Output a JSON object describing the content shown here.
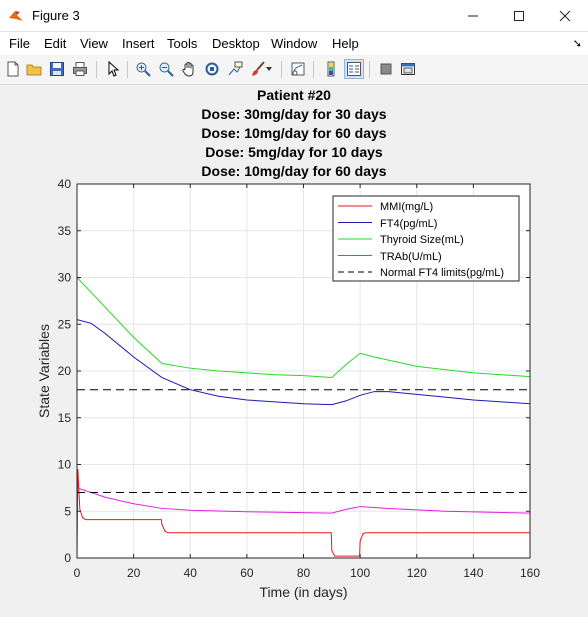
{
  "window": {
    "title": "Figure 3"
  },
  "menu": [
    "File",
    "Edit",
    "View",
    "Insert",
    "Tools",
    "Desktop",
    "Window",
    "Help"
  ],
  "toolbar": [
    "new-figure",
    "open-file",
    "save",
    "print",
    "select-pointer",
    "zoom-in",
    "zoom-out",
    "pan",
    "rotate-3d",
    "data-cursor",
    "brush",
    "link-plot",
    "insert-colorbar",
    "insert-legend",
    "hide-plot-tools",
    "show-plot-tools"
  ],
  "plot": {
    "title_lines": [
      "Patient #20",
      "Dose: 30mg/day for 30 days",
      "Dose: 10mg/day for 60 days",
      "Dose: 5mg/day for 10 days",
      "Dose: 10mg/day for 60 days"
    ],
    "xlabel": "Time (in days)",
    "ylabel": "State Variables",
    "xticks": [
      0,
      20,
      40,
      60,
      80,
      100,
      120,
      140,
      160
    ],
    "yticks": [
      0,
      5,
      10,
      15,
      20,
      25,
      30,
      35,
      40
    ],
    "legend": [
      "MMI(mg/L)",
      "FT4(pg/mL)",
      "Thyroid Size(mL)",
      "TRAb(U/mL)",
      "Normal FT4 limits(pg/mL)"
    ]
  },
  "chart_data": {
    "type": "line",
    "xlim": [
      0,
      160
    ],
    "ylim": [
      0,
      40
    ],
    "grid": true,
    "legend_position": "top-right",
    "series": [
      {
        "name": "MMI(mg/L)",
        "color": "#e8191a",
        "style": "solid",
        "points": [
          [
            0,
            0
          ],
          [
            0.3,
            9.5
          ],
          [
            1,
            5.2
          ],
          [
            2,
            4.3
          ],
          [
            3,
            4.1
          ],
          [
            10,
            4.1
          ],
          [
            29.8,
            4.1
          ],
          [
            30,
            3.6
          ],
          [
            31,
            2.9
          ],
          [
            32,
            2.7
          ],
          [
            89.8,
            2.7
          ],
          [
            90,
            0.8
          ],
          [
            91,
            0.2
          ],
          [
            99.8,
            0.2
          ],
          [
            100,
            1.8
          ],
          [
            101,
            2.6
          ],
          [
            102,
            2.7
          ],
          [
            160,
            2.7
          ]
        ]
      },
      {
        "name": "FT4(pg/mL)",
        "color": "#1a1ab5",
        "style": "solid",
        "points": [
          [
            0,
            25.5
          ],
          [
            5,
            25.1
          ],
          [
            10,
            24.0
          ],
          [
            20,
            21.5
          ],
          [
            30,
            19.3
          ],
          [
            40,
            18.0
          ],
          [
            50,
            17.3
          ],
          [
            60,
            16.9
          ],
          [
            70,
            16.7
          ],
          [
            80,
            16.5
          ],
          [
            90,
            16.4
          ],
          [
            95,
            16.8
          ],
          [
            100,
            17.4
          ],
          [
            105,
            17.8
          ],
          [
            110,
            17.8
          ],
          [
            120,
            17.5
          ],
          [
            130,
            17.2
          ],
          [
            140,
            16.9
          ],
          [
            150,
            16.7
          ],
          [
            160,
            16.5
          ]
        ]
      },
      {
        "name": "Thyroid Size(mL)",
        "color": "#22dd22",
        "style": "solid",
        "points": [
          [
            0,
            30.0
          ],
          [
            5,
            28.4
          ],
          [
            10,
            26.8
          ],
          [
            20,
            23.6
          ],
          [
            30,
            20.8
          ],
          [
            40,
            20.3
          ],
          [
            50,
            20.0
          ],
          [
            60,
            19.8
          ],
          [
            70,
            19.6
          ],
          [
            80,
            19.5
          ],
          [
            90,
            19.3
          ],
          [
            95,
            20.7
          ],
          [
            100,
            21.9
          ],
          [
            105,
            21.5
          ],
          [
            120,
            20.5
          ],
          [
            140,
            19.8
          ],
          [
            160,
            19.4
          ]
        ]
      },
      {
        "name": "TRAb(U/mL)",
        "color": "#e020e0",
        "style": "solid",
        "points": [
          [
            0,
            7.5
          ],
          [
            5,
            7.0
          ],
          [
            10,
            6.5
          ],
          [
            20,
            5.8
          ],
          [
            30,
            5.3
          ],
          [
            40,
            5.1
          ],
          [
            60,
            4.95
          ],
          [
            80,
            4.85
          ],
          [
            90,
            4.8
          ],
          [
            95,
            5.2
          ],
          [
            100,
            5.5
          ],
          [
            110,
            5.3
          ],
          [
            130,
            5.0
          ],
          [
            160,
            4.8
          ]
        ]
      },
      {
        "name": "Normal FT4 limits(pg/mL)",
        "color": "#000000",
        "style": "dashed",
        "points": [
          [
            0,
            18
          ],
          [
            160,
            18
          ]
        ]
      },
      {
        "name": "",
        "color": "#000000",
        "style": "dashed",
        "points": [
          [
            0,
            7
          ],
          [
            160,
            7
          ]
        ]
      }
    ]
  }
}
